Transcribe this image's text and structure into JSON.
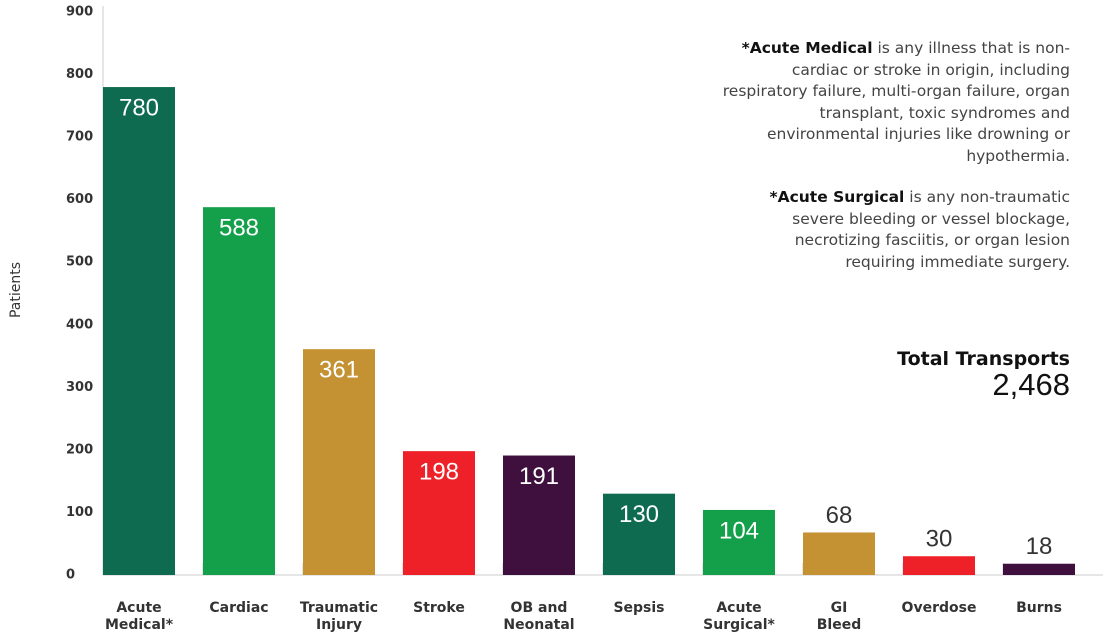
{
  "chart_data": {
    "type": "bar",
    "y_label": "Patients",
    "categories": [
      [
        "Acute",
        "Medical*"
      ],
      [
        "Cardiac"
      ],
      [
        "Traumatic",
        "Injury"
      ],
      [
        "Stroke"
      ],
      [
        "OB and",
        "Neonatal"
      ],
      [
        "Sepsis"
      ],
      [
        "Acute",
        "Surgical*"
      ],
      [
        "GI",
        "Bleed"
      ],
      [
        "Overdose"
      ],
      [
        "Burns"
      ]
    ],
    "values": [
      780,
      588,
      361,
      198,
      191,
      130,
      104,
      68,
      30,
      18
    ],
    "colors": [
      "#0e6b50",
      "#14a04a",
      "#c49232",
      "#ee2128",
      "#3f0f3d",
      "#0e6b50",
      "#14a04a",
      "#c49232",
      "#ee2128",
      "#3f0f3d"
    ],
    "ylim": [
      0,
      900
    ],
    "yticks": [
      0,
      100,
      200,
      300,
      400,
      500,
      600,
      700,
      800,
      900
    ],
    "notes": [
      {
        "bold": "*Acute Medical",
        "text": " is any illness that is non-cardiac or stroke in origin, including respiratory failure, multi-organ failure, organ transplant, toxic syndromes and environmental injuries like drowning or hypothermia."
      },
      {
        "bold": "*Acute Surgical",
        "text": " is any non-traumatic severe bleeding or vessel blockage, necrotizing fasciitis, or organ lesion requiring immediate surgery."
      }
    ],
    "total_label": "Total Transports",
    "total_value": "2,468"
  }
}
